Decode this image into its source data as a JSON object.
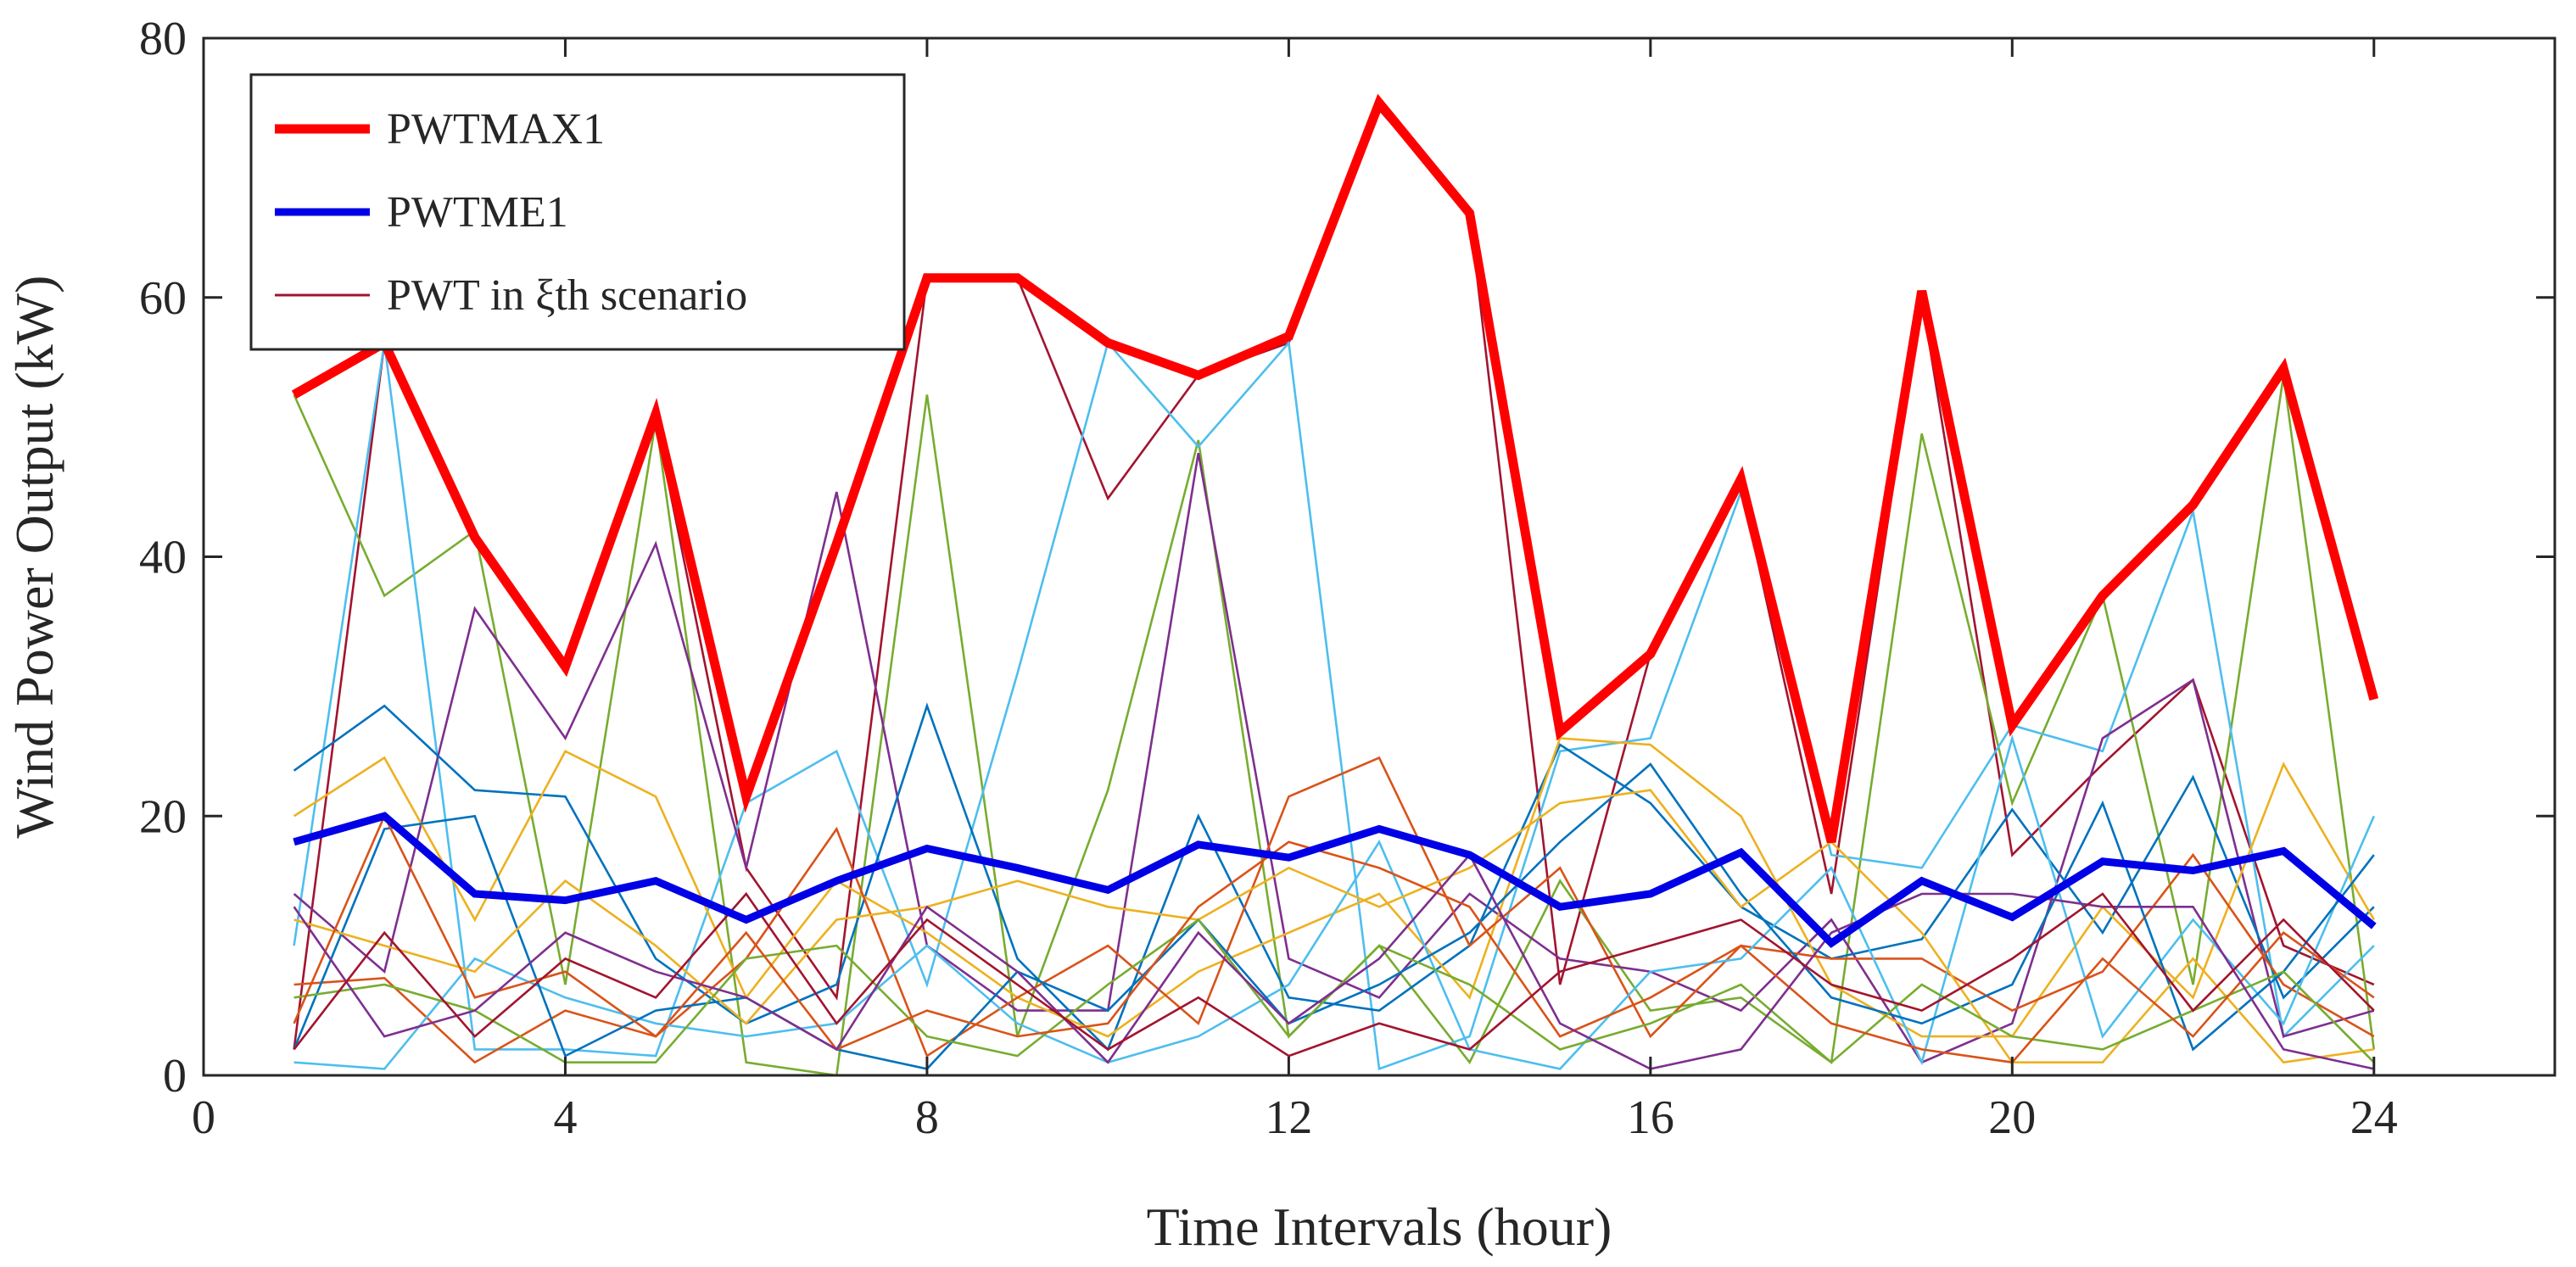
{
  "chart_data": {
    "type": "line",
    "title": "",
    "xlabel": "Time Intervals (hour)",
    "ylabel": "Wind Power Output (kW)",
    "xlim": [
      0,
      26
    ],
    "ylim": [
      0,
      80
    ],
    "xticks": [
      0,
      4,
      8,
      12,
      16,
      20,
      24
    ],
    "yticks": [
      0,
      20,
      40,
      60,
      80
    ],
    "grid": false,
    "legend_position": "top-left",
    "x": [
      1,
      2,
      3,
      4,
      5,
      6,
      7,
      8,
      9,
      10,
      11,
      12,
      13,
      14,
      15,
      16,
      17,
      18,
      19,
      20,
      21,
      22,
      23,
      24
    ],
    "series": [
      {
        "name": "PWTMAX1",
        "color": "#ff0000",
        "role": "legend",
        "values": [
          52.5,
          56.5,
          41.5,
          31.5,
          51,
          21.5,
          41,
          61.5,
          61.5,
          56.5,
          54,
          57,
          75,
          66.5,
          26.5,
          32.5,
          46,
          18,
          60.5,
          27,
          37,
          44,
          54.5,
          29
        ]
      },
      {
        "name": "PWTME1",
        "color": "#0000e6",
        "role": "legend",
        "values": [
          18,
          20,
          14,
          13.5,
          15,
          12,
          15,
          17.5,
          16,
          14.3,
          17.8,
          16.8,
          19,
          17,
          13,
          14,
          17.2,
          10.2,
          15,
          12.2,
          16.5,
          15.8,
          17.3,
          11.5
        ]
      },
      {
        "name": "PWT in ξth scenario",
        "color": "#a2142f",
        "role": "legend",
        "values": [
          2,
          56.5,
          41,
          31.5,
          50.5,
          16,
          6,
          61.5,
          61.5,
          44.5,
          54,
          56.5,
          74.5,
          66.5,
          7,
          32.5,
          45.5,
          14,
          60,
          17,
          24,
          30.5,
          10,
          7
        ]
      },
      {
        "name": "",
        "color": "#77ac30",
        "values": [
          52.5,
          37,
          42,
          7,
          50.5,
          1,
          0,
          52.5,
          3,
          22,
          49,
          3,
          10,
          1,
          15,
          5,
          6,
          1,
          49.5,
          21,
          37,
          7,
          54,
          2
        ]
      },
      {
        "name": "",
        "color": "#4dbeee",
        "values": [
          10,
          56.5,
          2,
          2,
          1.5,
          21,
          25,
          7,
          31,
          56.5,
          48.5,
          56.5,
          0.5,
          3,
          25,
          26,
          45,
          17,
          16,
          27,
          25,
          43.5,
          3,
          10
        ]
      },
      {
        "name": "",
        "color": "#7e2f8e",
        "values": [
          14,
          8,
          36,
          26,
          41,
          16,
          45,
          10,
          5,
          5,
          48,
          9,
          6,
          14,
          9,
          8,
          5,
          12,
          1,
          4,
          26,
          30.5,
          3,
          5
        ]
      },
      {
        "name": "",
        "color": "#0072bd",
        "values": [
          23.5,
          28.5,
          22,
          21.5,
          9,
          4,
          7,
          28.5,
          9,
          2,
          20,
          6,
          5,
          10,
          25.5,
          21,
          13,
          9,
          10.5,
          20.5,
          11,
          23,
          6,
          13
        ]
      },
      {
        "name": "",
        "color": "#edb120",
        "values": [
          20,
          24.5,
          12,
          25,
          21.5,
          6,
          15,
          11,
          6,
          3,
          8,
          11,
          14,
          6,
          26,
          25.5,
          20,
          7,
          3,
          3,
          13,
          6,
          24,
          12
        ]
      },
      {
        "name": "",
        "color": "#d95319",
        "values": [
          7,
          7.5,
          1,
          5,
          3,
          9,
          19,
          1.5,
          6,
          10,
          4,
          21.5,
          24.5,
          10,
          16,
          3,
          10,
          9,
          9,
          5,
          8,
          17,
          7,
          3
        ]
      },
      {
        "name": "",
        "color": "#4dbeee",
        "values": [
          1,
          0.5,
          9,
          6,
          4,
          3,
          4,
          10,
          4,
          1,
          3,
          7,
          18,
          2,
          0.5,
          8,
          9,
          16,
          1,
          26,
          3,
          12,
          4,
          20
        ]
      },
      {
        "name": "",
        "color": "#0072bd",
        "values": [
          2,
          19,
          20,
          1.5,
          5,
          6,
          2,
          0.5,
          8,
          5,
          12,
          4,
          7,
          11,
          18,
          24,
          14,
          6,
          4,
          7,
          21,
          2,
          8,
          17
        ]
      },
      {
        "name": "",
        "color": "#edb120",
        "values": [
          12,
          10,
          8,
          15,
          10,
          4,
          12,
          13,
          15,
          13,
          12,
          16,
          13,
          16,
          21,
          22,
          13,
          18,
          11,
          1,
          1,
          9,
          1,
          2
        ]
      },
      {
        "name": "",
        "color": "#77ac30",
        "values": [
          6,
          7,
          5,
          1,
          1,
          9,
          10,
          3,
          1.5,
          7,
          12,
          3,
          10,
          7,
          2,
          4,
          7,
          1,
          7,
          3,
          2,
          5,
          8,
          1
        ]
      },
      {
        "name": "",
        "color": "#d95319",
        "values": [
          4,
          20,
          6,
          8,
          3,
          11,
          2,
          5,
          3,
          4,
          13,
          18,
          16,
          13,
          3,
          6,
          10,
          4,
          2,
          1,
          9,
          3,
          11,
          6
        ]
      },
      {
        "name": "",
        "color": "#7e2f8e",
        "values": [
          13,
          3,
          5,
          11,
          8,
          6,
          2,
          13,
          8,
          1,
          11,
          4,
          9,
          17,
          4,
          0.5,
          2,
          11,
          14,
          14,
          13,
          13,
          2,
          0.5
        ]
      },
      {
        "name": "",
        "color": "#a2142f",
        "values": [
          2,
          11,
          3,
          9,
          6,
          14,
          4,
          12,
          7,
          2,
          6,
          1.5,
          4,
          2,
          8,
          10,
          12,
          7,
          5,
          9,
          14,
          5,
          12,
          5
        ]
      }
    ]
  }
}
